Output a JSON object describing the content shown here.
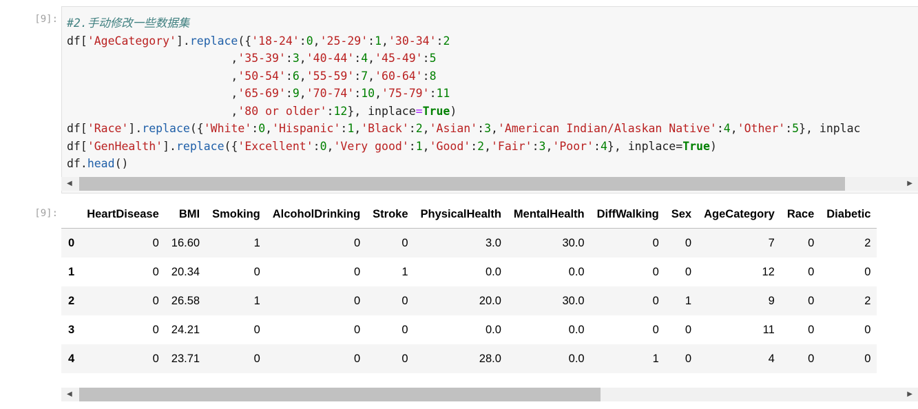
{
  "code_cell": {
    "prompt": "[9]:",
    "lines": [
      [
        {
          "t": "#2.手动修改一些数据集",
          "c": "c-comment"
        }
      ],
      [
        {
          "t": "df["
        },
        {
          "t": "'AgeCategory'",
          "c": "c-str"
        },
        {
          "t": "]."
        },
        {
          "t": "replace",
          "c": "c-attr"
        },
        {
          "t": "({"
        },
        {
          "t": "'18-24'",
          "c": "c-str"
        },
        {
          "t": ":"
        },
        {
          "t": "0",
          "c": "c-num"
        },
        {
          "t": ","
        },
        {
          "t": "'25-29'",
          "c": "c-str"
        },
        {
          "t": ":"
        },
        {
          "t": "1",
          "c": "c-num"
        },
        {
          "t": ","
        },
        {
          "t": "'30-34'",
          "c": "c-str"
        },
        {
          "t": ":"
        },
        {
          "t": "2",
          "c": "c-num"
        }
      ],
      [
        {
          "t": "                        ,"
        },
        {
          "t": "'35-39'",
          "c": "c-str"
        },
        {
          "t": ":"
        },
        {
          "t": "3",
          "c": "c-num"
        },
        {
          "t": ","
        },
        {
          "t": "'40-44'",
          "c": "c-str"
        },
        {
          "t": ":"
        },
        {
          "t": "4",
          "c": "c-num"
        },
        {
          "t": ","
        },
        {
          "t": "'45-49'",
          "c": "c-str"
        },
        {
          "t": ":"
        },
        {
          "t": "5",
          "c": "c-num"
        }
      ],
      [
        {
          "t": "                        ,"
        },
        {
          "t": "'50-54'",
          "c": "c-str"
        },
        {
          "t": ":"
        },
        {
          "t": "6",
          "c": "c-num"
        },
        {
          "t": ","
        },
        {
          "t": "'55-59'",
          "c": "c-str"
        },
        {
          "t": ":"
        },
        {
          "t": "7",
          "c": "c-num"
        },
        {
          "t": ","
        },
        {
          "t": "'60-64'",
          "c": "c-str"
        },
        {
          "t": ":"
        },
        {
          "t": "8",
          "c": "c-num"
        }
      ],
      [
        {
          "t": "                        ,"
        },
        {
          "t": "'65-69'",
          "c": "c-str"
        },
        {
          "t": ":"
        },
        {
          "t": "9",
          "c": "c-num"
        },
        {
          "t": ","
        },
        {
          "t": "'70-74'",
          "c": "c-str"
        },
        {
          "t": ":"
        },
        {
          "t": "10",
          "c": "c-num"
        },
        {
          "t": ","
        },
        {
          "t": "'75-79'",
          "c": "c-str"
        },
        {
          "t": ":"
        },
        {
          "t": "11",
          "c": "c-num"
        }
      ],
      [
        {
          "t": "                        ,"
        },
        {
          "t": "'80 or older'",
          "c": "c-str"
        },
        {
          "t": ":"
        },
        {
          "t": "12",
          "c": "c-num"
        },
        {
          "t": "}, inplace"
        },
        {
          "t": "=",
          "c": "c-op"
        },
        {
          "t": "True",
          "c": "c-kw"
        },
        {
          "t": ")"
        }
      ],
      [
        {
          "t": "df["
        },
        {
          "t": "'Race'",
          "c": "c-str"
        },
        {
          "t": "]."
        },
        {
          "t": "replace",
          "c": "c-attr"
        },
        {
          "t": "({"
        },
        {
          "t": "'White'",
          "c": "c-str"
        },
        {
          "t": ":"
        },
        {
          "t": "0",
          "c": "c-num"
        },
        {
          "t": ","
        },
        {
          "t": "'Hispanic'",
          "c": "c-str"
        },
        {
          "t": ":"
        },
        {
          "t": "1",
          "c": "c-num"
        },
        {
          "t": ","
        },
        {
          "t": "'Black'",
          "c": "c-str"
        },
        {
          "t": ":"
        },
        {
          "t": "2",
          "c": "c-num"
        },
        {
          "t": ","
        },
        {
          "t": "'Asian'",
          "c": "c-str"
        },
        {
          "t": ":"
        },
        {
          "t": "3",
          "c": "c-num"
        },
        {
          "t": ","
        },
        {
          "t": "'American Indian/Alaskan Native'",
          "c": "c-str"
        },
        {
          "t": ":"
        },
        {
          "t": "4",
          "c": "c-num"
        },
        {
          "t": ","
        },
        {
          "t": "'Other'",
          "c": "c-str"
        },
        {
          "t": ":"
        },
        {
          "t": "5",
          "c": "c-num"
        },
        {
          "t": "}, inplac"
        }
      ],
      [
        {
          "t": "df["
        },
        {
          "t": "'GenHealth'",
          "c": "c-str"
        },
        {
          "t": "]."
        },
        {
          "t": "replace",
          "c": "c-attr"
        },
        {
          "t": "({"
        },
        {
          "t": "'Excellent'",
          "c": "c-str"
        },
        {
          "t": ":"
        },
        {
          "t": "0",
          "c": "c-num"
        },
        {
          "t": ","
        },
        {
          "t": "'Very good'",
          "c": "c-str"
        },
        {
          "t": ":"
        },
        {
          "t": "1",
          "c": "c-num"
        },
        {
          "t": ","
        },
        {
          "t": "'Good'",
          "c": "c-str"
        },
        {
          "t": ":"
        },
        {
          "t": "2",
          "c": "c-num"
        },
        {
          "t": ","
        },
        {
          "t": "'Fair'",
          "c": "c-str"
        },
        {
          "t": ":"
        },
        {
          "t": "3",
          "c": "c-num"
        },
        {
          "t": ","
        },
        {
          "t": "'Poor'",
          "c": "c-str"
        },
        {
          "t": ":"
        },
        {
          "t": "4",
          "c": "c-num"
        },
        {
          "t": "}, inplace"
        },
        {
          "t": "="
        },
        {
          "t": "True",
          "c": "c-kw"
        },
        {
          "t": ")"
        }
      ],
      [
        {
          "t": "df."
        },
        {
          "t": "head",
          "c": "c-attr"
        },
        {
          "t": "()"
        }
      ]
    ],
    "scrollbar_position": 0.0
  },
  "output_cell": {
    "prompt": "[9]:",
    "columns": [
      "",
      "HeartDisease",
      "BMI",
      "Smoking",
      "AlcoholDrinking",
      "Stroke",
      "PhysicalHealth",
      "MentalHealth",
      "DiffWalking",
      "Sex",
      "AgeCategory",
      "Race",
      "Diabetic"
    ],
    "rows": [
      [
        "0",
        "0",
        "16.60",
        "1",
        "0",
        "0",
        "3.0",
        "30.0",
        "0",
        "0",
        "7",
        "0",
        "2"
      ],
      [
        "1",
        "0",
        "20.34",
        "0",
        "0",
        "1",
        "0.0",
        "0.0",
        "0",
        "0",
        "12",
        "0",
        "0"
      ],
      [
        "2",
        "0",
        "26.58",
        "1",
        "0",
        "0",
        "20.0",
        "30.0",
        "0",
        "1",
        "9",
        "0",
        "2"
      ],
      [
        "3",
        "0",
        "24.21",
        "0",
        "0",
        "0",
        "0.0",
        "0.0",
        "0",
        "0",
        "11",
        "0",
        "0"
      ],
      [
        "4",
        "0",
        "23.71",
        "0",
        "0",
        "0",
        "28.0",
        "0.0",
        "1",
        "0",
        "4",
        "0",
        "0"
      ]
    ],
    "scrollbar_position": 0.0
  },
  "scroll_left_arrow": "◀",
  "scroll_right_arrow": "▶"
}
